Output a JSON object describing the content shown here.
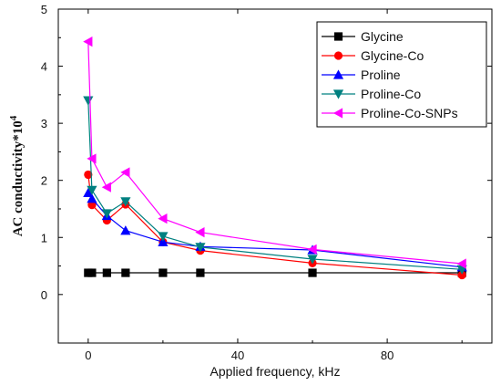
{
  "chart_data": {
    "type": "line",
    "xlabel": "Applied frequency, kHz",
    "ylabel": "AC conductivity*10",
    "ylabel_superscript": "4",
    "xlim": [
      -8,
      108
    ],
    "ylim": [
      -0.85,
      5.0
    ],
    "xticks": [
      0,
      40,
      80
    ],
    "yticks": [
      0,
      1,
      2,
      3,
      4,
      5
    ],
    "grid": false,
    "legend_position": "top-right",
    "series": [
      {
        "name": "Glycine",
        "color": "#000000",
        "marker": "square",
        "x": [
          0,
          1,
          5,
          10,
          20,
          30,
          60,
          100
        ],
        "y": [
          0.38,
          0.38,
          0.38,
          0.38,
          0.38,
          0.38,
          0.38,
          0.38
        ]
      },
      {
        "name": "Glycine-Co",
        "color": "#ff0000",
        "marker": "circle",
        "x": [
          0,
          1,
          5,
          10,
          20,
          30,
          60,
          100
        ],
        "y": [
          2.1,
          1.57,
          1.3,
          1.58,
          0.92,
          0.77,
          0.55,
          0.34
        ]
      },
      {
        "name": "Proline",
        "color": "#0000ff",
        "marker": "triangle-up",
        "x": [
          0,
          1,
          5,
          10,
          20,
          30,
          60,
          100
        ],
        "y": [
          1.78,
          1.68,
          1.38,
          1.12,
          0.92,
          0.84,
          0.78,
          0.48
        ]
      },
      {
        "name": "Proline-Co",
        "color": "#008080",
        "marker": "triangle-down",
        "x": [
          0,
          1,
          5,
          10,
          20,
          30,
          60,
          100
        ],
        "y": [
          3.4,
          1.83,
          1.42,
          1.63,
          1.02,
          0.83,
          0.62,
          0.44
        ]
      },
      {
        "name": "Proline-Co-SNPs",
        "color": "#ff00ff",
        "marker": "triangle-left",
        "x": [
          0,
          1,
          5,
          10,
          20,
          30,
          60,
          100
        ],
        "y": [
          4.43,
          2.38,
          1.88,
          2.14,
          1.33,
          1.09,
          0.79,
          0.54
        ]
      }
    ]
  }
}
